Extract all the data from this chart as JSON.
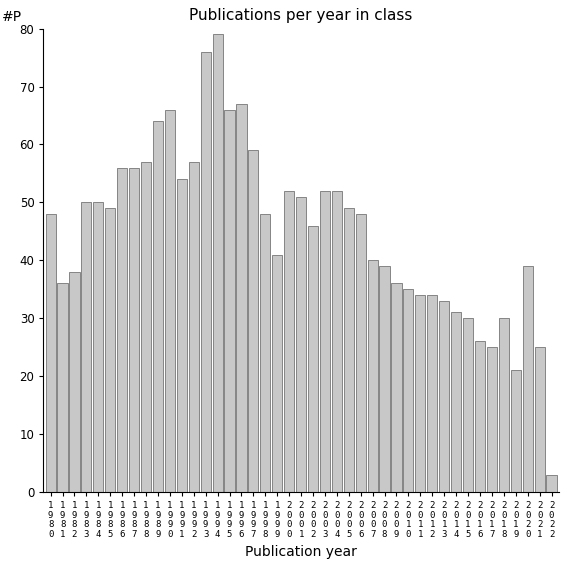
{
  "title": "Publications per year in class",
  "xlabel": "Publication year",
  "ylabel": "#P",
  "bar_color": "#c8c8c8",
  "bar_edge_color": "#606060",
  "years": [
    1980,
    1981,
    1982,
    1983,
    1984,
    1985,
    1986,
    1987,
    1988,
    1989,
    1990,
    1991,
    1992,
    1993,
    1994,
    1995,
    1996,
    1997,
    1998,
    1999,
    2000,
    2001,
    2002,
    2003,
    2004,
    2005,
    2006,
    2007,
    2008,
    2009,
    2010,
    2011,
    2012,
    2013,
    2014,
    2015,
    2016,
    2017,
    2018,
    2019,
    2020,
    2021,
    2022
  ],
  "values": [
    48,
    36,
    38,
    50,
    50,
    49,
    56,
    56,
    57,
    64,
    66,
    54,
    57,
    76,
    79,
    66,
    67,
    59,
    48,
    41,
    52,
    51,
    46,
    52,
    52,
    49,
    48,
    40,
    39,
    36,
    35,
    34,
    34,
    33,
    31,
    30,
    26,
    25,
    30,
    21,
    39,
    25,
    3
  ],
  "ylim": [
    0,
    80
  ],
  "yticks": [
    0,
    10,
    20,
    30,
    40,
    50,
    60,
    70,
    80
  ],
  "background_color": "#ffffff",
  "title_fontsize": 11,
  "axis_label_fontsize": 10,
  "tick_fontsize": 8
}
